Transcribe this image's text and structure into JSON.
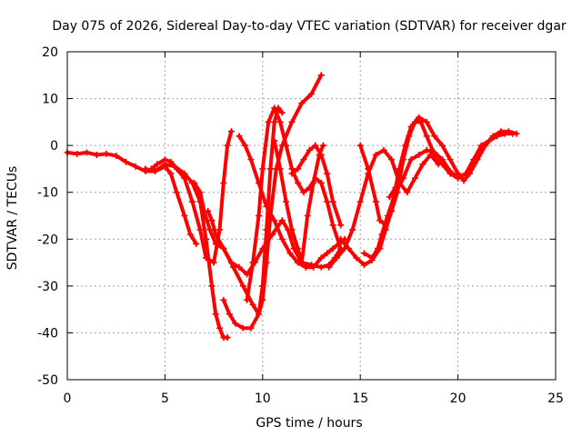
{
  "chart_data": {
    "type": "line",
    "title": "Day 075 of 2026, Sidereal Day-to-day VTEC variation (SDTVAR) for receiver dgar",
    "xlabel": "GPS time / hours",
    "ylabel": "SDTVAR / TECUs",
    "xlim": [
      0,
      25
    ],
    "ylim": [
      -50,
      20
    ],
    "x_ticks": [
      0,
      5,
      10,
      15,
      20,
      25
    ],
    "y_ticks": [
      -50,
      -40,
      -30,
      -20,
      -10,
      0,
      10,
      20
    ],
    "x_tick_labels": [
      "0",
      "5",
      "10",
      "15",
      "20",
      "25"
    ],
    "y_tick_labels": [
      "-50",
      "-40",
      "-30",
      "-20",
      "-10",
      "0",
      "10",
      "20"
    ],
    "grid": true,
    "marker": "plus",
    "color": "#ff0000",
    "series": [
      {
        "name": "trace-a",
        "x": [
          0.0,
          0.5,
          1.0,
          1.5,
          2.0,
          2.5,
          3.0,
          3.5,
          4.0,
          4.5,
          5.0,
          5.3,
          5.6,
          6.0,
          6.3,
          6.6
        ],
        "y": [
          -1.5,
          -1.8,
          -1.5,
          -2.0,
          -1.8,
          -2.2,
          -3.5,
          -4.5,
          -5.5,
          -5.5,
          -4.5,
          -6,
          -10,
          -15,
          -19,
          -21
        ]
      },
      {
        "name": "trace-b",
        "x": [
          4.3,
          4.6,
          5.0,
          5.3,
          5.6,
          6.0,
          6.4,
          6.8,
          7.1,
          7.5,
          7.8,
          8.0,
          8.2,
          8.4
        ],
        "y": [
          -5,
          -4,
          -3,
          -3.5,
          -5,
          -7,
          -12,
          -18,
          -24,
          -25,
          -18,
          -8,
          0,
          3
        ]
      },
      {
        "name": "trace-c",
        "x": [
          4.0,
          4.5,
          5.0,
          5.5,
          6.0,
          6.4,
          6.8,
          7.1,
          7.4,
          7.6,
          7.8,
          8.0,
          8.2
        ],
        "y": [
          -5,
          -5.5,
          -4,
          -4.5,
          -6,
          -8,
          -12,
          -20,
          -30,
          -36,
          -39,
          -41,
          -41
        ]
      },
      {
        "name": "trace-d",
        "x": [
          6.5,
          6.8,
          7.0,
          7.3,
          7.6,
          8.0,
          8.5,
          9.0,
          9.5,
          9.8,
          10.0,
          10.2,
          10.4,
          10.6,
          10.8,
          11.0
        ],
        "y": [
          -8,
          -10,
          -14,
          -18,
          -21,
          -22,
          -26,
          -30,
          -34,
          -36,
          -30,
          -18,
          -5,
          5,
          8,
          7
        ]
      },
      {
        "name": "trace-e",
        "x": [
          7.2,
          7.4,
          7.6,
          8.0,
          8.4,
          8.8,
          9.2,
          9.6,
          10.0,
          10.5,
          11.0,
          11.3,
          11.6,
          12.0,
          12.5,
          13.0,
          13.4,
          13.7,
          14.0
        ],
        "y": [
          -14,
          -16,
          -19,
          -22,
          -25,
          -26,
          -27.5,
          -25,
          -22,
          -19,
          -16,
          -18,
          -22,
          -25,
          -25.5,
          -26,
          -25.5,
          -24,
          -22
        ]
      },
      {
        "name": "trace-f",
        "x": [
          8.0,
          8.3,
          8.6,
          9.0,
          9.4,
          9.8,
          10.0,
          10.2,
          10.4,
          10.7,
          11.0,
          11.5,
          12.0,
          12.5,
          13.0
        ],
        "y": [
          -33,
          -36,
          -38,
          -39,
          -39,
          -36,
          -33,
          -25,
          -15,
          -5,
          0,
          5,
          9,
          11,
          15
        ]
      },
      {
        "name": "trace-g",
        "x": [
          8.8,
          9.1,
          9.4,
          9.8,
          10.2,
          10.6,
          11.0,
          11.4,
          11.8,
          12.2,
          12.6,
          13.0,
          13.3,
          13.6,
          13.9,
          14.2
        ],
        "y": [
          2,
          0,
          -3,
          -8,
          -13,
          -16,
          -20,
          -23,
          -25,
          -26,
          -26,
          -24,
          -23,
          -22,
          -21,
          -20
        ]
      },
      {
        "name": "trace-h",
        "x": [
          9.2,
          9.5,
          9.8,
          10.0,
          10.3,
          10.6,
          10.9,
          11.2,
          11.5,
          11.8,
          12.1,
          12.4,
          12.7,
          13.0,
          13.3,
          13.6,
          14.0
        ],
        "y": [
          -33,
          -25,
          -15,
          -5,
          5,
          8,
          5,
          0,
          -5,
          -8,
          -10,
          -9,
          -7,
          -8,
          -12,
          -17,
          -22
        ]
      },
      {
        "name": "trace-i",
        "x": [
          10.6,
          10.9,
          11.2,
          11.5,
          11.8,
          12.0,
          12.3,
          12.6,
          12.9,
          13.1
        ],
        "y": [
          1,
          -5,
          -12,
          -18,
          -22,
          -25,
          -15,
          -8,
          -2,
          0
        ]
      },
      {
        "name": "trace-j",
        "x": [
          11.5,
          11.8,
          12.1,
          12.4,
          12.7,
          13.0,
          13.3,
          13.6,
          14.0
        ],
        "y": [
          -6,
          -5,
          -3,
          -1,
          0,
          -2,
          -6,
          -12,
          -17
        ]
      },
      {
        "name": "trace-k",
        "x": [
          14.0,
          14.4,
          14.8,
          15.2,
          15.6,
          16.0,
          16.3,
          16.6
        ],
        "y": [
          -20,
          -22,
          -24,
          -25.5,
          -24.5,
          -22,
          -18,
          -14
        ]
      },
      {
        "name": "trace-l",
        "x": [
          13.4,
          13.8,
          14.2,
          14.6,
          15.0,
          15.4,
          15.8,
          16.2,
          16.6,
          17.0,
          17.4,
          17.8,
          18.2,
          18.6,
          19.0
        ],
        "y": [
          -26,
          -24,
          -22,
          -18,
          -12,
          -6,
          -2,
          -1,
          -3,
          -8,
          -10,
          -7,
          -4,
          -2,
          -4
        ]
      },
      {
        "name": "trace-m",
        "x": [
          15.0,
          15.4,
          15.8,
          16.0,
          16.3,
          16.6,
          16.9,
          17.2,
          17.5,
          17.8,
          18.1,
          18.4,
          18.8,
          19.2,
          19.6,
          20.0
        ],
        "y": [
          0,
          -5,
          -12,
          -16,
          -17,
          -14,
          -10,
          -3,
          2,
          5,
          5,
          2,
          -2,
          -4,
          -6,
          -7
        ]
      },
      {
        "name": "trace-n",
        "x": [
          15.2,
          15.6,
          15.9,
          16.1,
          16.4,
          16.8,
          17.2,
          17.6,
          18.0,
          18.4,
          18.8,
          19.2,
          19.6,
          20.0,
          20.4,
          20.8,
          21.2,
          21.6,
          22.0,
          22.4,
          22.8
        ],
        "y": [
          -23,
          -24,
          -22,
          -19,
          -15,
          -10,
          -7,
          -3,
          -2,
          -1,
          -1.5,
          -3,
          -5.5,
          -7,
          -6,
          -3,
          0,
          1,
          2,
          2.5,
          2.5
        ]
      },
      {
        "name": "trace-o",
        "x": [
          16.5,
          16.8,
          17.0,
          17.3,
          17.6,
          18.0,
          18.4,
          18.8,
          19.2,
          19.6,
          20.0,
          20.3,
          20.6,
          21.0,
          21.4,
          21.8,
          22.2,
          22.6,
          23.0
        ],
        "y": [
          -11,
          -9,
          -5,
          0,
          4,
          6,
          5,
          2,
          0,
          -3,
          -6,
          -7.5,
          -6,
          -3,
          0,
          2,
          3,
          3,
          2.5
        ]
      }
    ]
  }
}
